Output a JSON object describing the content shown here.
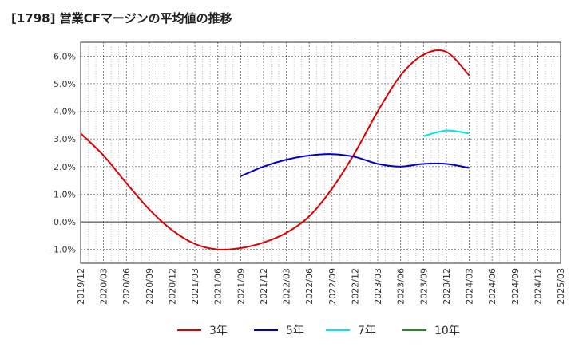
{
  "chart_data": {
    "type": "line",
    "title": "[1798]  営業CFマージンの平均値の推移",
    "xlabel": "",
    "ylabel": "",
    "x_ticks": [
      "2019/12",
      "2020/03",
      "2020/06",
      "2020/09",
      "2020/12",
      "2021/03",
      "2021/06",
      "2021/09",
      "2021/12",
      "2022/03",
      "2022/06",
      "2022/09",
      "2022/12",
      "2023/03",
      "2023/06",
      "2023/09",
      "2023/12",
      "2024/03",
      "2024/06",
      "2024/09",
      "2024/12",
      "2025/03"
    ],
    "y_ticks": [
      -1.0,
      0.0,
      1.0,
      2.0,
      3.0,
      4.0,
      5.0,
      6.0
    ],
    "y_tick_labels": [
      "-1.0%",
      "0.0%",
      "1.0%",
      "2.0%",
      "3.0%",
      "4.0%",
      "5.0%",
      "6.0%"
    ],
    "ylim": [
      -1.5,
      6.5
    ],
    "grid": true,
    "legend_position": "bottom",
    "series": [
      {
        "name": "3年",
        "color": "#dd0000",
        "x": [
          "2019/12",
          "2020/03",
          "2020/06",
          "2020/09",
          "2020/12",
          "2021/03",
          "2021/06",
          "2021/09",
          "2021/12",
          "2022/03",
          "2022/06",
          "2022/09",
          "2022/12",
          "2023/03",
          "2023/06",
          "2023/09",
          "2023/12",
          "2024/03"
        ],
        "values": [
          3.2,
          2.4,
          1.4,
          0.45,
          -0.3,
          -0.8,
          -1.0,
          -0.95,
          -0.75,
          -0.4,
          0.2,
          1.2,
          2.5,
          4.0,
          5.3,
          6.05,
          6.15,
          5.3
        ]
      },
      {
        "name": "5年",
        "color": "#0000cc",
        "x": [
          "2021/09",
          "2021/12",
          "2022/03",
          "2022/06",
          "2022/09",
          "2022/12",
          "2023/03",
          "2023/06",
          "2023/09",
          "2023/12",
          "2024/03"
        ],
        "values": [
          1.65,
          2.0,
          2.25,
          2.4,
          2.45,
          2.35,
          2.1,
          2.0,
          2.1,
          2.1,
          1.95
        ]
      },
      {
        "name": "7年",
        "color": "#00e5ee",
        "x": [
          "2023/09",
          "2023/12",
          "2024/03"
        ],
        "values": [
          3.1,
          3.3,
          3.2
        ]
      },
      {
        "name": "10年",
        "color": "#228b22",
        "x": [],
        "values": []
      }
    ]
  }
}
